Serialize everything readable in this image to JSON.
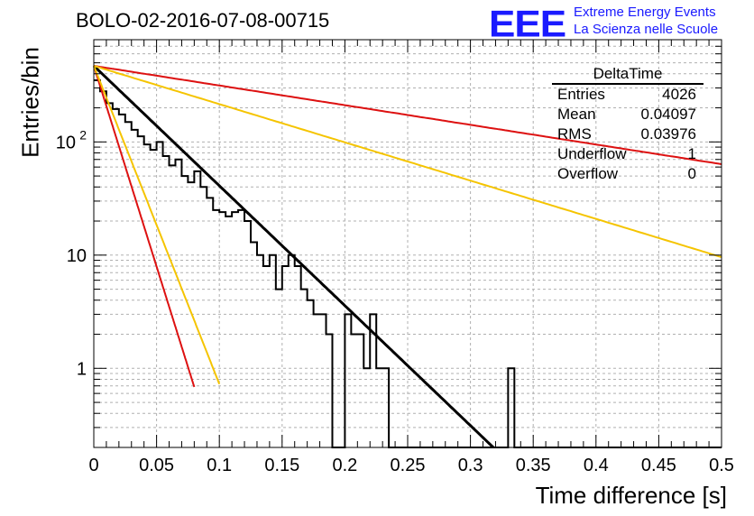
{
  "header": {
    "title": "BOLO-02-2016-07-08-00715",
    "logo": "EEE",
    "logo_line1": "Extreme Energy Events",
    "logo_line2": "La Scienza nelle Scuole"
  },
  "stats_box": {
    "title": "DeltaTime",
    "rows": [
      {
        "label": "Entries",
        "value": "4026"
      },
      {
        "label": "Mean",
        "value": "0.04097"
      },
      {
        "label": "RMS",
        "value": "0.03976"
      },
      {
        "label": "Underflow",
        "value": "1"
      },
      {
        "label": "Overflow",
        "value": "0"
      }
    ]
  },
  "colors": {
    "histogram": "#000000",
    "fit_black": "#000000",
    "fit_red": "#dd1111",
    "fit_yellow": "#f5c400",
    "grid": "#b0b0b0"
  },
  "chart_data": {
    "type": "line",
    "title": "BOLO-02-2016-07-08-00715",
    "xlabel": "Time difference [s]",
    "ylabel": "Entries/bin",
    "xlim": [
      0,
      0.5
    ],
    "ylim": [
      0.2,
      800
    ],
    "yscale": "log",
    "grid": true,
    "x_ticks": [
      "0",
      "0.05",
      "0.1",
      "0.15",
      "0.2",
      "0.25",
      "0.3",
      "0.35",
      "0.4",
      "0.45",
      "0.5"
    ],
    "y_ticks": [
      {
        "value": 1,
        "label": "1"
      },
      {
        "value": 10,
        "label": "10"
      },
      {
        "value": 100,
        "label": "10",
        "exp": "2"
      }
    ],
    "histogram": {
      "bin_width": 0.005,
      "counts": [
        350,
        280,
        220,
        195,
        175,
        150,
        128,
        112,
        95,
        85,
        100,
        75,
        62,
        70,
        50,
        44,
        55,
        40,
        32,
        25,
        24,
        22,
        24,
        25,
        20,
        13,
        10,
        8,
        10,
        5,
        8,
        10,
        8,
        5,
        4,
        3,
        3,
        2,
        0,
        0,
        3,
        2,
        2,
        1,
        3,
        1,
        1,
        0,
        0,
        0,
        0,
        0,
        0,
        0,
        0,
        0,
        0,
        0,
        0,
        0,
        0,
        0,
        0,
        0,
        0,
        0,
        1,
        0,
        0,
        0,
        0,
        0,
        0,
        0,
        0,
        0,
        0,
        0,
        0,
        0,
        0,
        0,
        0,
        0,
        0,
        0,
        0,
        0,
        0,
        0,
        0,
        0,
        0,
        0,
        0,
        0,
        0,
        0,
        0,
        0
      ]
    },
    "fits": [
      {
        "color": "black",
        "a": 470,
        "tau": 0.041,
        "x_end": 0.325
      },
      {
        "color": "red",
        "a": 470,
        "tau": 0.25,
        "x_end": 0.5
      },
      {
        "color": "yellow",
        "a": 470,
        "tau": 0.1285,
        "x_end": 0.5
      },
      {
        "color": "red",
        "a": 470,
        "tau": 0.01225,
        "x_end": 0.08
      },
      {
        "color": "yellow",
        "a": 470,
        "tau": 0.01545,
        "x_end": 0.1
      }
    ]
  }
}
